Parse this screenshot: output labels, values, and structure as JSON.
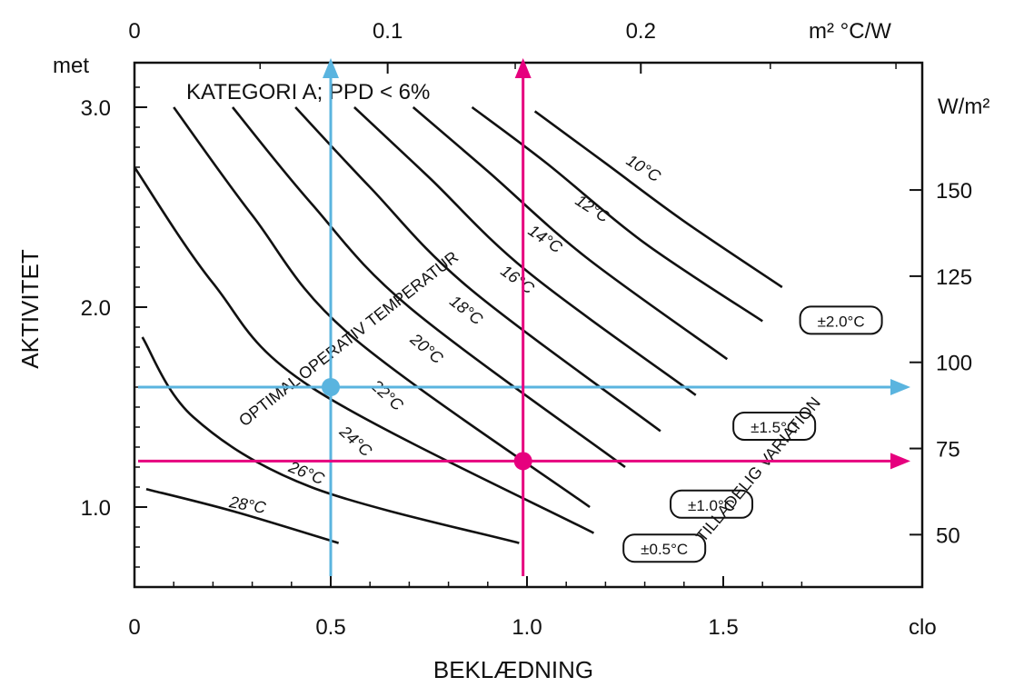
{
  "chart_data": {
    "type": "line",
    "title": "KATEGORI  A;  PPD  <  6%",
    "xlabel": "BEKLÆDNING",
    "ylabel": "AKTIVITET",
    "x_unit": "clo",
    "y_unit": "met",
    "x2_unit": "m² °C/W",
    "y2_unit": "W/m²",
    "xlim": [
      0,
      1.8
    ],
    "ylim": [
      0.6,
      3.2
    ],
    "x_ticks": [
      {
        "v": 0,
        "label": "0"
      },
      {
        "v": 0.5,
        "label": "0.5"
      },
      {
        "v": 1.0,
        "label": "1.0"
      },
      {
        "v": 1.5,
        "label": "1.5"
      }
    ],
    "y_ticks": [
      {
        "v": 1.0,
        "label": "1.0"
      },
      {
        "v": 2.0,
        "label": "2.0"
      },
      {
        "v": 3.0,
        "label": "3.0"
      }
    ],
    "x2_ticks": [
      {
        "v": 0,
        "label": "0"
      },
      {
        "v": 0.645,
        "label": "0.1"
      },
      {
        "v": 1.29,
        "label": "0.2"
      }
    ],
    "y2_ticks": [
      {
        "v": 0.862,
        "label": "50"
      },
      {
        "v": 1.293,
        "label": "75"
      },
      {
        "v": 1.724,
        "label": "100"
      },
      {
        "v": 2.155,
        "label": "125"
      },
      {
        "v": 2.586,
        "label": "150"
      }
    ],
    "series": [
      {
        "name": "10°C",
        "points": [
          [
            1.02,
            2.98
          ],
          [
            1.2,
            2.72
          ],
          [
            1.4,
            2.43
          ],
          [
            1.65,
            2.1
          ]
        ]
      },
      {
        "name": "12°C",
        "points": [
          [
            0.86,
            3.0
          ],
          [
            1.05,
            2.72
          ],
          [
            1.3,
            2.32
          ],
          [
            1.6,
            1.93
          ]
        ]
      },
      {
        "name": "14°C",
        "points": [
          [
            0.71,
            3.0
          ],
          [
            0.9,
            2.68
          ],
          [
            1.15,
            2.25
          ],
          [
            1.51,
            1.74
          ]
        ]
      },
      {
        "name": "16°C",
        "points": [
          [
            0.56,
            3.0
          ],
          [
            0.75,
            2.65
          ],
          [
            1.0,
            2.18
          ],
          [
            1.43,
            1.56
          ]
        ]
      },
      {
        "name": "18°C",
        "points": [
          [
            0.41,
            3.0
          ],
          [
            0.6,
            2.6
          ],
          [
            0.85,
            2.1
          ],
          [
            1.34,
            1.38
          ]
        ]
      },
      {
        "name": "20°C",
        "points": [
          [
            0.25,
            3.0
          ],
          [
            0.45,
            2.52
          ],
          [
            0.7,
            2.0
          ],
          [
            1.25,
            1.2
          ]
        ]
      },
      {
        "name": "22°C",
        "points": [
          [
            0.1,
            3.0
          ],
          [
            0.3,
            2.46
          ],
          [
            0.55,
            1.86
          ],
          [
            1.16,
            1.0
          ]
        ]
      },
      {
        "name": "24°C",
        "points": [
          [
            0.0,
            2.7
          ],
          [
            0.2,
            2.12
          ],
          [
            0.45,
            1.6
          ],
          [
            1.17,
            0.87
          ]
        ]
      },
      {
        "name": "26°C",
        "points": [
          [
            0.02,
            1.85
          ],
          [
            0.15,
            1.45
          ],
          [
            0.45,
            1.1
          ],
          [
            0.98,
            0.82
          ]
        ]
      },
      {
        "name": "28°C",
        "points": [
          [
            0.03,
            1.09
          ],
          [
            0.25,
            0.98
          ],
          [
            0.52,
            0.82
          ]
        ]
      }
    ],
    "curve_labels": [
      {
        "text": "10°C",
        "x": 1.25,
        "y": 2.72,
        "angle": 32
      },
      {
        "text": "12°C",
        "x": 1.12,
        "y": 2.52,
        "angle": 33
      },
      {
        "text": "14°C",
        "x": 1.0,
        "y": 2.37,
        "angle": 34
      },
      {
        "text": "16°C",
        "x": 0.93,
        "y": 2.17,
        "angle": 36
      },
      {
        "text": "18°C",
        "x": 0.8,
        "y": 2.02,
        "angle": 38
      },
      {
        "text": "20°C",
        "x": 0.7,
        "y": 1.83,
        "angle": 40
      },
      {
        "text": "22°C",
        "x": 0.6,
        "y": 1.6,
        "angle": 42
      },
      {
        "text": "24°C",
        "x": 0.52,
        "y": 1.37,
        "angle": 42
      },
      {
        "text": "26°C",
        "x": 0.39,
        "y": 1.18,
        "angle": 22
      },
      {
        "text": "28°C",
        "x": 0.24,
        "y": 1.0,
        "angle": 10
      }
    ],
    "tolerance_labels": [
      {
        "text": "±2.0°C",
        "x": 1.8,
        "y": 1.93
      },
      {
        "text": "±1.5°C",
        "x": 1.63,
        "y": 1.4
      },
      {
        "text": "±1.0°C",
        "x": 1.47,
        "y": 1.01
      },
      {
        "text": "±0.5°C",
        "x": 1.35,
        "y": 0.79
      }
    ],
    "rotated_text": [
      {
        "text": "OPTIMAL OPERATIV TEMPERATUR",
        "x": 0.28,
        "y": 1.4,
        "angle": -38
      },
      {
        "text": "TILLADELIG VARIATION",
        "x": 1.45,
        "y": 0.82,
        "angle": -50
      }
    ],
    "guides": [
      {
        "name": "blue",
        "color": "#5ab4df",
        "x": 0.5,
        "y": 1.6
      },
      {
        "name": "magenta",
        "color": "#e6007e",
        "x": 0.99,
        "y": 1.23
      }
    ]
  }
}
